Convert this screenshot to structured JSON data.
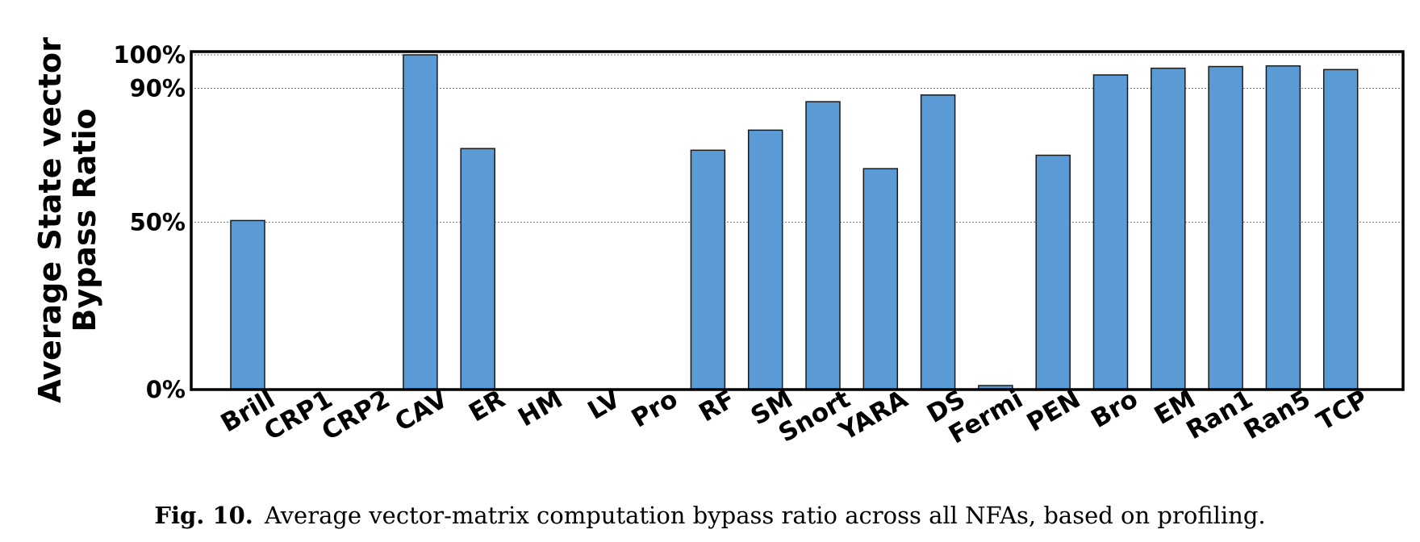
{
  "chart_data": {
    "type": "bar",
    "ylabel_line1": "Average State vector",
    "ylabel_line2": "Bypass Ratio",
    "xlabel": "",
    "ylim": [
      0,
      100
    ],
    "yticks": [
      {
        "value": 0,
        "label": "0%"
      },
      {
        "value": 50,
        "label": "50%"
      },
      {
        "value": 90,
        "label": "90%"
      },
      {
        "value": 100,
        "label": "100%"
      }
    ],
    "grid": true,
    "categories": [
      "Brill",
      "CRP1",
      "CRP2",
      "CAV",
      "ER",
      "HM",
      "LV",
      "Pro",
      "RF",
      "SM",
      "Snort",
      "YARA",
      "DS",
      "Fermi",
      "PEN",
      "Bro",
      "EM",
      "Ran1",
      "Ran5",
      "TCP"
    ],
    "values": [
      50.5,
      0,
      0,
      100,
      72,
      0,
      0,
      0,
      71.5,
      77.5,
      86,
      66,
      88,
      1.2,
      70,
      94,
      96,
      96.5,
      96.7,
      95.6
    ],
    "color": "#5b9bd5"
  },
  "caption": {
    "label": "Fig. 10.",
    "text": "Average vector-matrix computation bypass ratio across all NFAs, based on profiling."
  }
}
